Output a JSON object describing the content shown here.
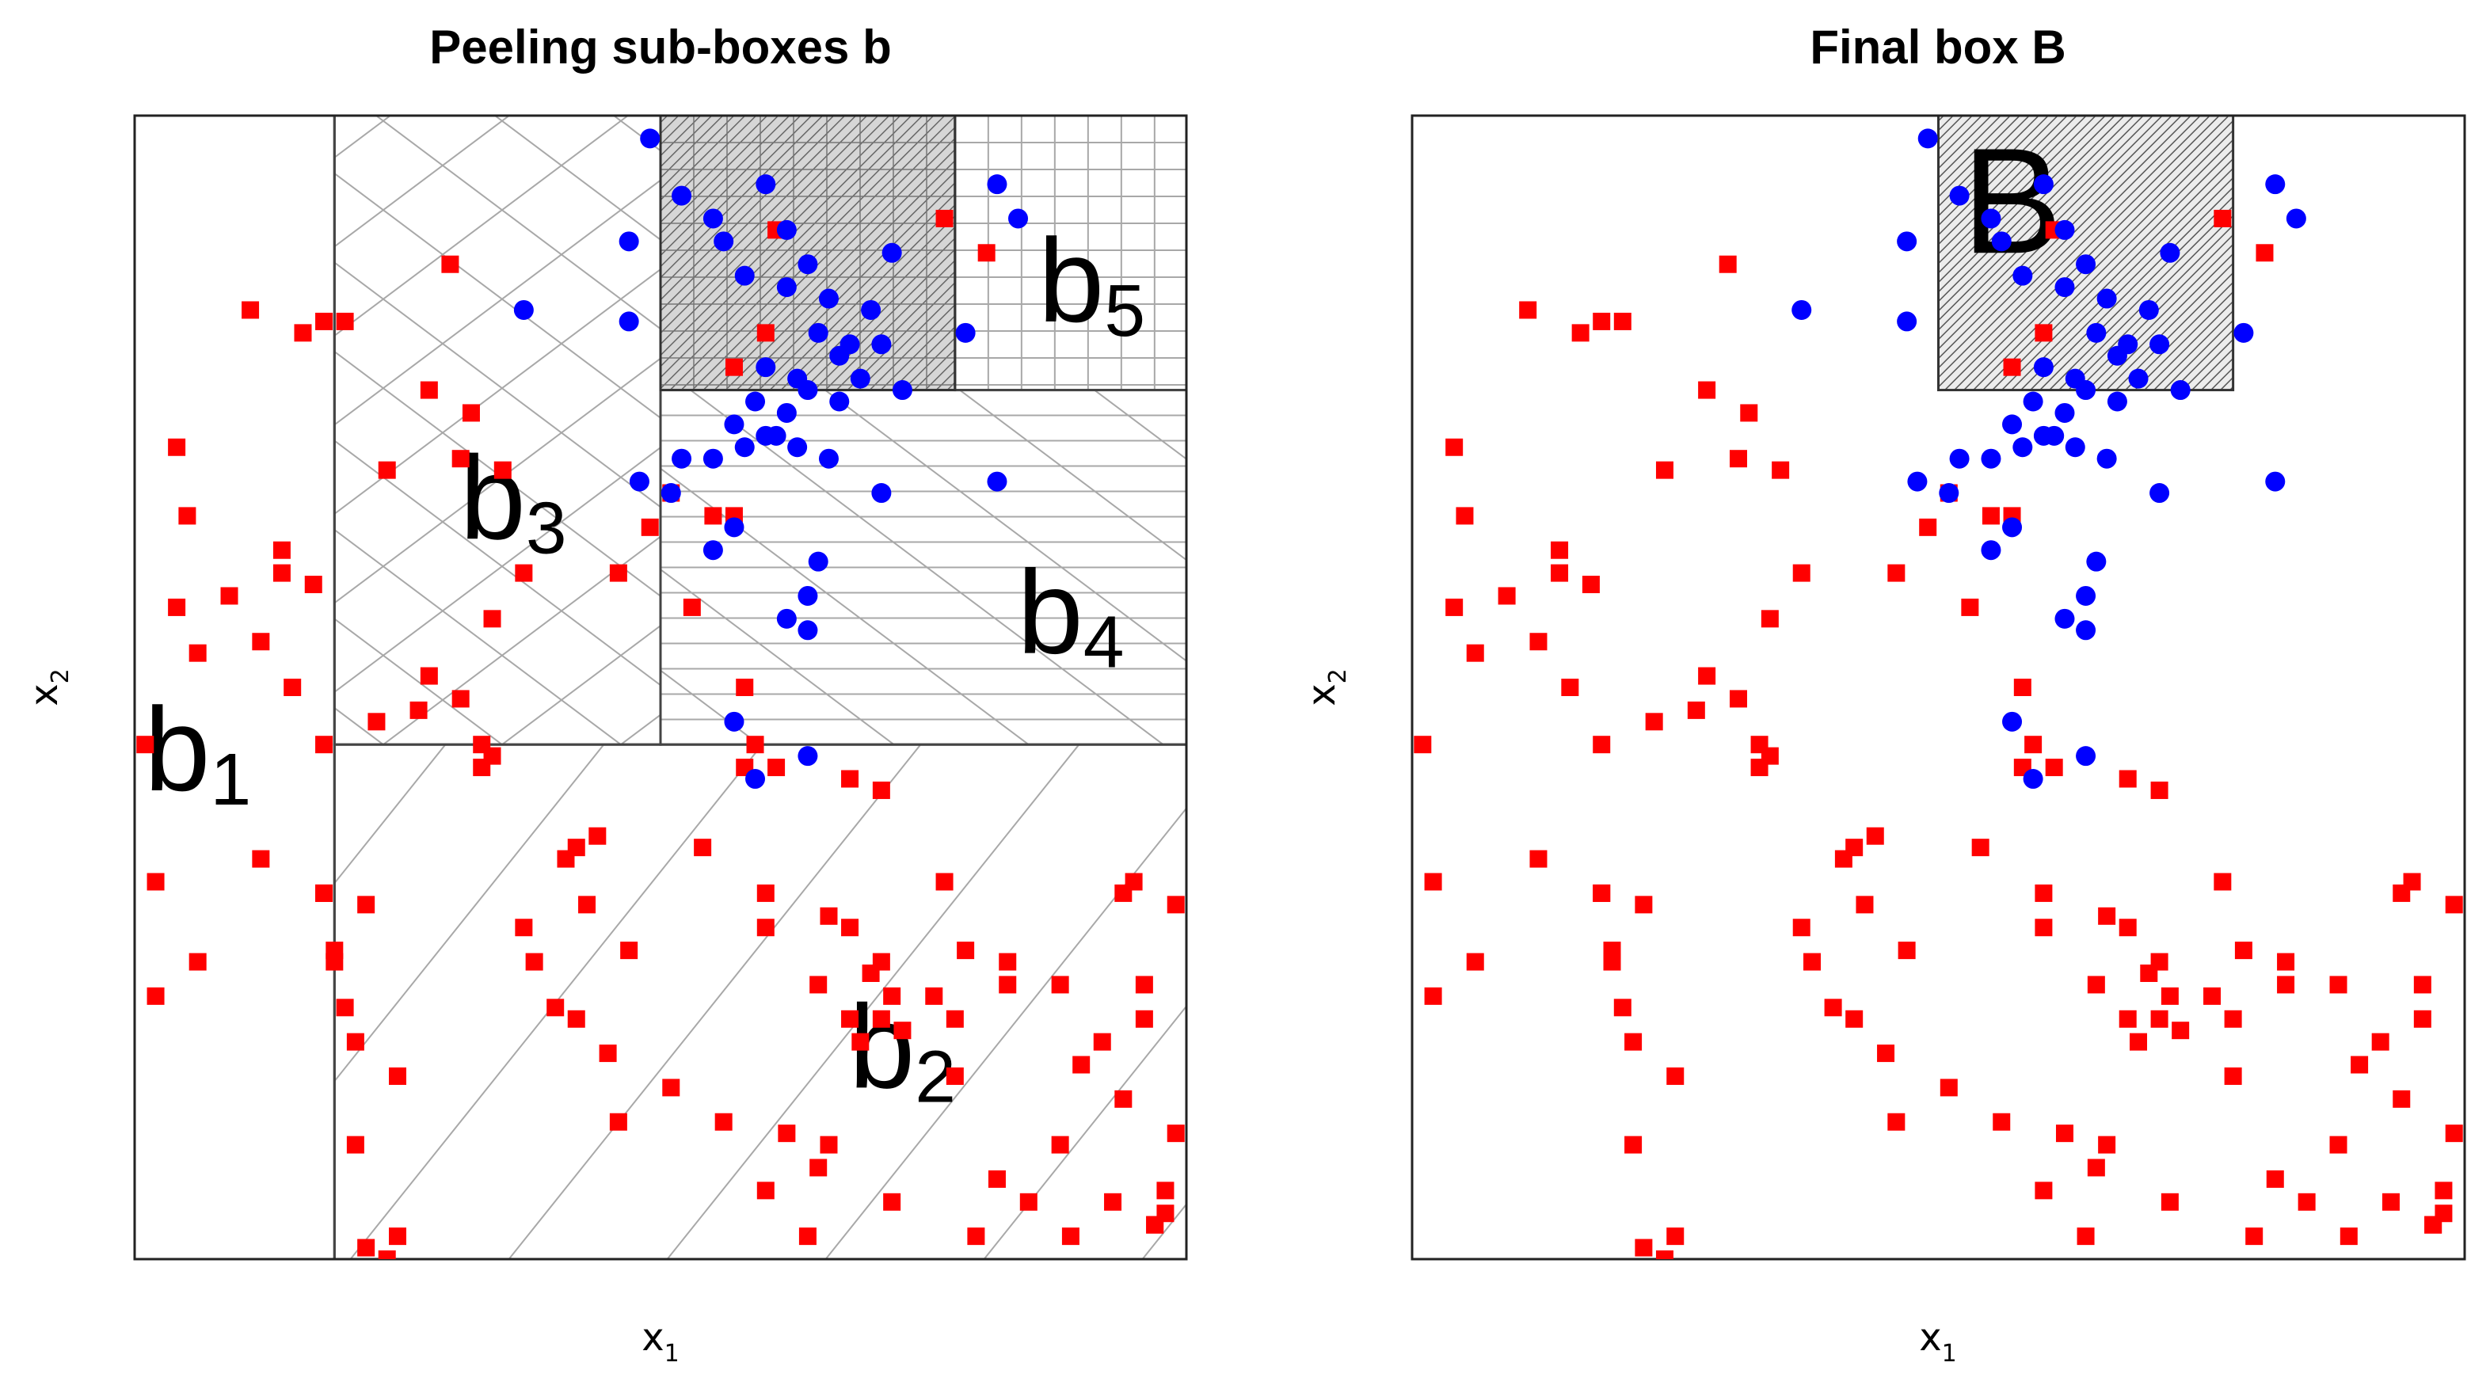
{
  "chart_data": [
    {
      "type": "scatter",
      "title": "Peeling sub-boxes b",
      "xlabel": "x",
      "xlabel_sub": "1",
      "ylabel": "x",
      "ylabel_sub": "2",
      "xlim": [
        0,
        1
      ],
      "ylim": [
        0,
        1
      ],
      "grid": false,
      "legend": "none",
      "boxes": [
        {
          "label": "b",
          "sub": "1",
          "x": [
            0.0,
            0.19
          ],
          "y": [
            0.0,
            1.0
          ],
          "hatch": "none",
          "label_at": [
            0.06,
            0.41
          ]
        },
        {
          "label": "b",
          "sub": "2",
          "x": [
            0.19,
            1.0
          ],
          "y": [
            0.0,
            0.45
          ],
          "hatch": "diagonal-wide",
          "label_at": [
            0.73,
            0.15
          ]
        },
        {
          "label": "b",
          "sub": "3",
          "x": [
            0.19,
            0.5
          ],
          "y": [
            0.45,
            1.0
          ],
          "hatch": "crosshatch-diag",
          "label_at": [
            0.36,
            0.63
          ]
        },
        {
          "label": "b",
          "sub": "4",
          "x": [
            0.5,
            1.0
          ],
          "y": [
            0.45,
            0.76
          ],
          "hatch": "horizontal-diag",
          "label_at": [
            0.89,
            0.53
          ]
        },
        {
          "label": "b",
          "sub": "5",
          "x": [
            0.78,
            1.0
          ],
          "y": [
            0.76,
            1.0
          ],
          "hatch": "grid",
          "label_at": [
            0.91,
            0.82
          ]
        }
      ],
      "highlight_box": {
        "x": [
          0.5,
          0.78
        ],
        "y": [
          0.76,
          1.0
        ],
        "hatch": "fine-grid-grey"
      },
      "series": [
        {
          "name": "red",
          "marker": "square",
          "color": "#ff0000",
          "x": [
            0.3,
            0.11,
            0.18,
            0.16,
            0.2,
            0.28,
            0.32,
            0.31,
            0.24,
            0.35,
            0.04,
            0.05,
            0.04,
            0.06,
            0.17,
            0.14,
            0.14,
            0.09,
            0.12,
            0.15,
            0.18,
            0.01,
            0.12,
            0.02,
            0.18,
            0.02,
            0.19,
            0.2,
            0.21,
            0.25,
            0.22,
            0.24,
            0.34,
            0.33,
            0.44,
            0.42,
            0.41,
            0.43,
            0.47,
            0.54,
            0.6,
            0.68,
            0.65,
            0.73,
            0.72,
            0.69,
            0.76,
            0.79,
            0.83,
            0.92,
            0.96,
            0.88,
            0.94,
            0.99,
            0.95,
            0.97,
            0.99,
            0.9,
            0.96,
            0.88,
            0.94,
            0.98,
            0.83,
            0.71,
            0.78,
            0.68,
            0.7,
            0.71,
            0.78,
            0.58,
            0.59,
            0.68,
            0.61,
            0.53,
            0.57,
            0.55,
            0.51,
            0.49,
            0.46,
            0.37,
            0.34,
            0.28,
            0.31,
            0.23,
            0.27,
            0.33,
            0.22,
            0.18,
            0.19,
            0.06,
            0.21,
            0.25,
            0.46,
            0.66,
            0.62,
            0.65,
            0.72,
            0.82,
            0.85,
            0.93,
            0.98,
            0.97,
            0.89,
            0.8,
            0.64,
            0.6,
            0.56,
            0.51,
            0.45,
            0.42,
            0.4,
            0.38,
            0.37,
            0.6,
            0.66,
            0.77,
            0.71,
            0.58
          ],
          "y": [
            0.87,
            0.83,
            0.82,
            0.81,
            0.82,
            0.76,
            0.74,
            0.7,
            0.69,
            0.69,
            0.71,
            0.65,
            0.57,
            0.53,
            0.59,
            0.6,
            0.62,
            0.58,
            0.54,
            0.5,
            0.45,
            0.45,
            0.35,
            0.33,
            0.32,
            0.23,
            0.27,
            0.22,
            0.1,
            0.02,
            0.01,
            0.0,
            0.44,
            0.45,
            0.37,
            0.36,
            0.35,
            0.31,
            0.27,
            0.36,
            0.32,
            0.29,
            0.24,
            0.2,
            0.23,
            0.19,
            0.23,
            0.27,
            0.24,
            0.19,
            0.24,
            0.24,
            0.32,
            0.31,
            0.33,
            0.03,
            0.11,
            0.17,
            0.21,
            0.1,
            0.14,
            0.06,
            0.26,
            0.21,
            0.16,
            0.21,
            0.25,
            0.26,
            0.21,
            0.43,
            0.45,
            0.42,
            0.43,
            0.57,
            0.65,
            0.65,
            0.67,
            0.64,
            0.6,
            0.6,
            0.56,
            0.51,
            0.49,
            0.47,
            0.48,
            0.43,
            0.31,
            0.32,
            0.26,
            0.26,
            0.19,
            0.16,
            0.12,
            0.1,
            0.11,
            0.08,
            0.05,
            0.07,
            0.05,
            0.05,
            0.04,
            0.03,
            0.02,
            0.02,
            0.02,
            0.06,
            0.12,
            0.15,
            0.18,
            0.21,
            0.22,
            0.26,
            0.29,
            0.29,
            0.3,
            0.33,
            0.41,
            0.5
          ],
          "mixed_in_box": [
            [
              0.61,
              0.9
            ],
            [
              0.77,
              0.91
            ],
            [
              0.81,
              0.88
            ],
            [
              0.6,
              0.81
            ],
            [
              0.57,
              0.78
            ]
          ]
        },
        {
          "name": "blue",
          "marker": "circle",
          "color": "#0000ff",
          "x": [
            0.49,
            0.52,
            0.55,
            0.6,
            0.62,
            0.64,
            0.56,
            0.58,
            0.62,
            0.66,
            0.7,
            0.72,
            0.65,
            0.68,
            0.6,
            0.63,
            0.67,
            0.71,
            0.59,
            0.62,
            0.64,
            0.67,
            0.69,
            0.73,
            0.57,
            0.6,
            0.63,
            0.66,
            0.52,
            0.55,
            0.58,
            0.61,
            0.82,
            0.84,
            0.79,
            0.47,
            0.47,
            0.37,
            0.71,
            0.82,
            0.65,
            0.64,
            0.48,
            0.51,
            0.57,
            0.55,
            0.62,
            0.64,
            0.57,
            0.59,
            0.64
          ],
          "y": [
            0.98,
            0.93,
            0.91,
            0.94,
            0.9,
            0.87,
            0.89,
            0.86,
            0.85,
            0.84,
            0.83,
            0.88,
            0.81,
            0.8,
            0.78,
            0.77,
            0.79,
            0.8,
            0.75,
            0.74,
            0.76,
            0.75,
            0.77,
            0.76,
            0.73,
            0.72,
            0.71,
            0.7,
            0.7,
            0.7,
            0.71,
            0.72,
            0.94,
            0.91,
            0.81,
            0.89,
            0.82,
            0.83,
            0.67,
            0.68,
            0.61,
            0.58,
            0.68,
            0.67,
            0.64,
            0.62,
            0.56,
            0.55,
            0.47,
            0.42,
            0.44
          ]
        }
      ]
    },
    {
      "type": "scatter",
      "title": "Final box B",
      "xlabel": "x",
      "xlabel_sub": "1",
      "ylabel": "x",
      "ylabel_sub": "2",
      "xlim": [
        0,
        1
      ],
      "ylim": [
        0,
        1
      ],
      "grid": false,
      "legend": "none",
      "boxes": [
        {
          "label": "B",
          "sub": "",
          "x": [
            0.5,
            0.78
          ],
          "y": [
            0.76,
            1.0
          ],
          "hatch": "diagonal-fine",
          "label_at": [
            0.57,
            0.88
          ]
        }
      ],
      "series_ref": "same points as left panel"
    }
  ]
}
